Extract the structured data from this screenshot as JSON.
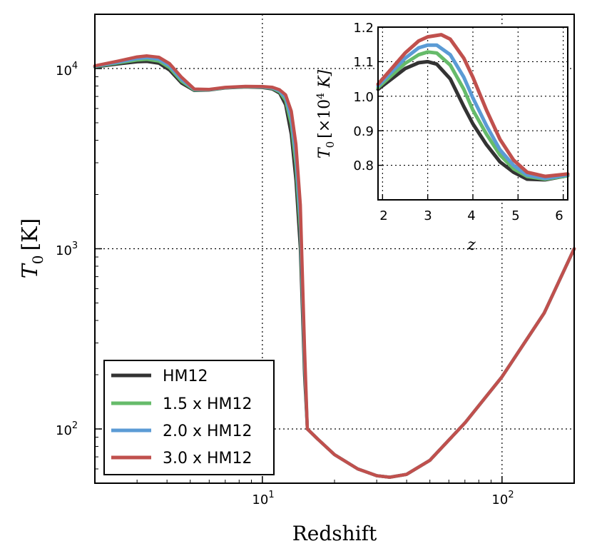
{
  "chart_data": [
    {
      "type": "line",
      "scale": "log-log",
      "xlabel": "Redshift",
      "ylabel_main": "T",
      "ylabel_sub": "0",
      "ylabel_unit": "[K]",
      "xlim": [
        2,
        200
      ],
      "ylim": [
        50,
        20000
      ],
      "grid": true,
      "legend_placement": "bottom-left",
      "xticks": [
        {
          "value": 10,
          "base": "10",
          "exp": "1"
        },
        {
          "value": 100,
          "base": "10",
          "exp": "2"
        }
      ],
      "yticks": [
        {
          "value": 100,
          "base": "10",
          "exp": "2"
        },
        {
          "value": 1000,
          "base": "10",
          "exp": "3"
        },
        {
          "value": 10000,
          "base": "10",
          "exp": "4"
        }
      ],
      "series": [
        {
          "name": "HM12",
          "color": "#333333",
          "points": [
            [
              2,
              10200
            ],
            [
              2.5,
              10600
            ],
            [
              3,
              10900
            ],
            [
              3.3,
              10950
            ],
            [
              3.7,
              10700
            ],
            [
              4.1,
              9800
            ],
            [
              4.6,
              8300
            ],
            [
              5.2,
              7550
            ],
            [
              6,
              7600
            ],
            [
              7,
              7800
            ],
            [
              8.5,
              7900
            ],
            [
              10,
              7850
            ],
            [
              11,
              7700
            ],
            [
              11.8,
              7300
            ],
            [
              12.5,
              6300
            ],
            [
              13.2,
              4300
            ],
            [
              13.8,
              2400
            ],
            [
              14.4,
              1000
            ],
            [
              15,
              200
            ],
            [
              15.4,
              100
            ],
            [
              17,
              88
            ],
            [
              20,
              72
            ],
            [
              25,
              60
            ],
            [
              30,
              55
            ],
            [
              34,
              54
            ],
            [
              40,
              56
            ],
            [
              50,
              67
            ],
            [
              70,
              108
            ],
            [
              100,
              195
            ],
            [
              150,
              440
            ],
            [
              200,
              1000
            ]
          ]
        },
        {
          "name": "1.5 x HM12",
          "color": "#66bb6a",
          "points": [
            [
              2,
              10250
            ],
            [
              2.5,
              10750
            ],
            [
              3,
              11150
            ],
            [
              3.3,
              11250
            ],
            [
              3.7,
              11000
            ],
            [
              4.1,
              10100
            ],
            [
              4.6,
              8500
            ],
            [
              5.2,
              7600
            ],
            [
              6,
              7620
            ],
            [
              7,
              7820
            ],
            [
              8.5,
              7920
            ],
            [
              10,
              7880
            ],
            [
              11,
              7760
            ],
            [
              11.8,
              7420
            ],
            [
              12.5,
              6650
            ],
            [
              13.2,
              4900
            ],
            [
              13.8,
              2900
            ],
            [
              14.4,
              1250
            ],
            [
              15,
              230
            ],
            [
              15.4,
              100
            ],
            [
              17,
              88
            ],
            [
              20,
              72
            ],
            [
              25,
              60
            ],
            [
              30,
              55
            ],
            [
              34,
              54
            ],
            [
              40,
              56
            ],
            [
              50,
              67
            ],
            [
              70,
              108
            ],
            [
              100,
              195
            ],
            [
              150,
              440
            ],
            [
              200,
              1000
            ]
          ]
        },
        {
          "name": "2.0 x HM12",
          "color": "#5b9bd5",
          "points": [
            [
              2,
              10300
            ],
            [
              2.5,
              10850
            ],
            [
              3,
              11350
            ],
            [
              3.3,
              11500
            ],
            [
              3.7,
              11250
            ],
            [
              4.1,
              10350
            ],
            [
              4.6,
              8700
            ],
            [
              5.2,
              7650
            ],
            [
              6,
              7640
            ],
            [
              7,
              7840
            ],
            [
              8.5,
              7940
            ],
            [
              10,
              7910
            ],
            [
              11,
              7810
            ],
            [
              11.8,
              7520
            ],
            [
              12.5,
              6900
            ],
            [
              13.2,
              5300
            ],
            [
              13.8,
              3300
            ],
            [
              14.4,
              1450
            ],
            [
              15,
              250
            ],
            [
              15.4,
              100
            ],
            [
              17,
              88
            ],
            [
              20,
              72
            ],
            [
              25,
              60
            ],
            [
              30,
              55
            ],
            [
              34,
              54
            ],
            [
              40,
              56
            ],
            [
              50,
              67
            ],
            [
              70,
              108
            ],
            [
              100,
              195
            ],
            [
              150,
              440
            ],
            [
              200,
              1000
            ]
          ]
        },
        {
          "name": "3.0 x HM12",
          "color": "#c0504d",
          "points": [
            [
              2,
              10350
            ],
            [
              2.5,
              11000
            ],
            [
              3,
              11600
            ],
            [
              3.3,
              11750
            ],
            [
              3.7,
              11550
            ],
            [
              4.1,
              10650
            ],
            [
              4.6,
              8950
            ],
            [
              5.2,
              7700
            ],
            [
              6,
              7660
            ],
            [
              7,
              7860
            ],
            [
              8.5,
              7960
            ],
            [
              10,
              7950
            ],
            [
              11,
              7870
            ],
            [
              11.8,
              7620
            ],
            [
              12.5,
              7150
            ],
            [
              13.2,
              5800
            ],
            [
              13.8,
              3800
            ],
            [
              14.4,
              1750
            ],
            [
              15,
              280
            ],
            [
              15.4,
              100
            ],
            [
              17,
              88
            ],
            [
              20,
              72
            ],
            [
              25,
              60
            ],
            [
              30,
              55
            ],
            [
              34,
              54
            ],
            [
              40,
              56
            ],
            [
              50,
              67
            ],
            [
              70,
              108
            ],
            [
              100,
              195
            ],
            [
              150,
              440
            ],
            [
              200,
              1000
            ]
          ]
        }
      ]
    },
    {
      "type": "line",
      "scale": "linear",
      "role": "inset",
      "xlabel": "z",
      "ylabel_main": "T",
      "ylabel_sub": "0",
      "ylabel_unit": "[×10",
      "ylabel_exp": "4",
      "ylabel_unit_end": " K]",
      "xlim": [
        1.9,
        6.1
      ],
      "ylim": [
        0.7,
        1.2
      ],
      "grid": true,
      "xticks": [
        {
          "value": 2,
          "label": "2"
        },
        {
          "value": 3,
          "label": "3"
        },
        {
          "value": 4,
          "label": "4"
        },
        {
          "value": 5,
          "label": "5"
        },
        {
          "value": 6,
          "label": "6"
        }
      ],
      "yticks": [
        {
          "value": 0.8,
          "label": "0.8"
        },
        {
          "value": 0.9,
          "label": "0.9"
        },
        {
          "value": 1.0,
          "label": "1.0"
        },
        {
          "value": 1.1,
          "label": "1.1"
        },
        {
          "value": 1.2,
          "label": "1.2"
        }
      ],
      "series": [
        {
          "name": "HM12",
          "color": "#333333",
          "points": [
            [
              1.9,
              1.02
            ],
            [
              2.2,
              1.05
            ],
            [
              2.5,
              1.08
            ],
            [
              2.8,
              1.097
            ],
            [
              3.0,
              1.1
            ],
            [
              3.2,
              1.093
            ],
            [
              3.5,
              1.05
            ],
            [
              3.8,
              0.97
            ],
            [
              4.0,
              0.92
            ],
            [
              4.3,
              0.86
            ],
            [
              4.6,
              0.81
            ],
            [
              4.9,
              0.78
            ],
            [
              5.2,
              0.76
            ],
            [
              5.6,
              0.758
            ],
            [
              6.1,
              0.77
            ]
          ]
        },
        {
          "name": "1.5 x HM12",
          "color": "#66bb6a",
          "points": [
            [
              1.9,
              1.025
            ],
            [
              2.2,
              1.06
            ],
            [
              2.5,
              1.095
            ],
            [
              2.8,
              1.12
            ],
            [
              3.0,
              1.128
            ],
            [
              3.2,
              1.125
            ],
            [
              3.5,
              1.09
            ],
            [
              3.8,
              1.02
            ],
            [
              4.0,
              0.96
            ],
            [
              4.3,
              0.89
            ],
            [
              4.6,
              0.83
            ],
            [
              4.9,
              0.79
            ],
            [
              5.2,
              0.768
            ],
            [
              5.6,
              0.76
            ],
            [
              6.1,
              0.77
            ]
          ]
        },
        {
          "name": "2.0 x HM12",
          "color": "#5b9bd5",
          "points": [
            [
              1.9,
              1.03
            ],
            [
              2.2,
              1.07
            ],
            [
              2.5,
              1.11
            ],
            [
              2.8,
              1.14
            ],
            [
              3.0,
              1.148
            ],
            [
              3.2,
              1.148
            ],
            [
              3.5,
              1.12
            ],
            [
              3.8,
              1.055
            ],
            [
              4.0,
              0.995
            ],
            [
              4.3,
              0.915
            ],
            [
              4.6,
              0.845
            ],
            [
              4.9,
              0.8
            ],
            [
              5.2,
              0.772
            ],
            [
              5.6,
              0.762
            ],
            [
              6.1,
              0.772
            ]
          ]
        },
        {
          "name": "3.0 x HM12",
          "color": "#c0504d",
          "points": [
            [
              1.9,
              1.035
            ],
            [
              2.2,
              1.08
            ],
            [
              2.5,
              1.125
            ],
            [
              2.8,
              1.16
            ],
            [
              3.0,
              1.172
            ],
            [
              3.3,
              1.178
            ],
            [
              3.5,
              1.165
            ],
            [
              3.8,
              1.11
            ],
            [
              4.0,
              1.055
            ],
            [
              4.3,
              0.96
            ],
            [
              4.6,
              0.875
            ],
            [
              4.9,
              0.815
            ],
            [
              5.2,
              0.78
            ],
            [
              5.6,
              0.768
            ],
            [
              6.1,
              0.775
            ]
          ]
        }
      ]
    }
  ]
}
